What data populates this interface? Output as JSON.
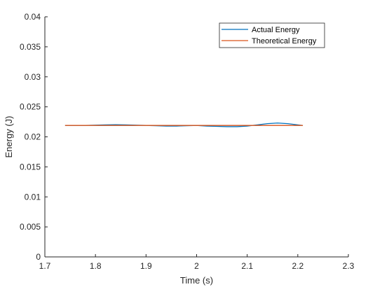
{
  "chart_data": {
    "type": "line",
    "title": "",
    "xlabel": "Time (s)",
    "ylabel": "Energy (J)",
    "xlim": [
      1.7,
      2.3
    ],
    "ylim": [
      0,
      0.04
    ],
    "xticks": [
      1.7,
      1.8,
      1.9,
      2.0,
      2.1,
      2.2,
      2.3
    ],
    "xtick_labels": [
      "1.7",
      "1.8",
      "1.9",
      "2",
      "2.1",
      "2.2",
      "2.3"
    ],
    "yticks": [
      0,
      0.005,
      0.01,
      0.015,
      0.02,
      0.025,
      0.03,
      0.035,
      0.04
    ],
    "ytick_labels": [
      "0",
      "0.005",
      "0.01",
      "0.015",
      "0.02",
      "0.025",
      "0.03",
      "0.035",
      "0.04"
    ],
    "grid": false,
    "legend_position": "top-right",
    "series": [
      {
        "name": "Actual Energy",
        "color": "#0072BD",
        "x": [
          1.74,
          1.76,
          1.78,
          1.8,
          1.82,
          1.84,
          1.86,
          1.88,
          1.9,
          1.92,
          1.94,
          1.96,
          1.98,
          2.0,
          2.02,
          2.04,
          2.06,
          2.08,
          2.1,
          2.12,
          2.14,
          2.16,
          2.18,
          2.2,
          2.21
        ],
        "values": [
          0.0219,
          0.0219,
          0.0219,
          0.02195,
          0.022,
          0.02202,
          0.022,
          0.02195,
          0.0219,
          0.02185,
          0.0218,
          0.0218,
          0.02185,
          0.0219,
          0.0218,
          0.02175,
          0.0217,
          0.0217,
          0.0218,
          0.022,
          0.0222,
          0.0223,
          0.0222,
          0.022,
          0.0219
        ]
      },
      {
        "name": "Theoretical Energy",
        "color": "#D95319",
        "x": [
          1.74,
          2.21
        ],
        "values": [
          0.0219,
          0.0219
        ]
      }
    ]
  }
}
